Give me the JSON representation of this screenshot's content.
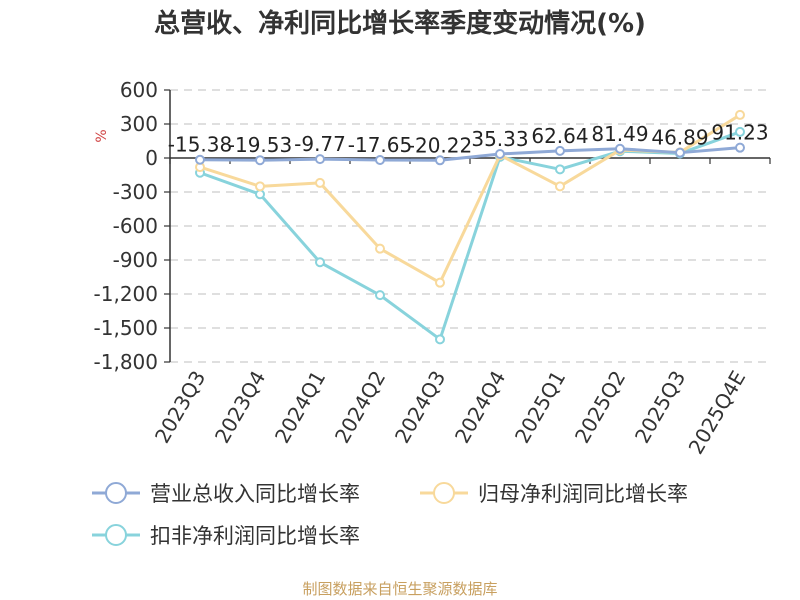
{
  "chart_data": {
    "type": "line",
    "title": "总营收、净利同比增长率季度变动情况(%)",
    "ylabel": "%",
    "ylim": [
      -1800,
      600
    ],
    "yticks": [
      600,
      300,
      0,
      -300,
      -600,
      -900,
      -1200,
      -1500,
      -1800
    ],
    "ytick_labels": [
      "600",
      "300",
      "0",
      "-300",
      "-600",
      "-900",
      "-1,200",
      "-1,500",
      "-1,800"
    ],
    "categories": [
      "2023Q3",
      "2023Q4",
      "2024Q1",
      "2024Q2",
      "2024Q3",
      "2024Q4",
      "2025Q1",
      "2025Q2",
      "2025Q3",
      "2025Q4E"
    ],
    "grid": true,
    "legend_position": "bottom",
    "series": [
      {
        "name": "营业总收入同比增长率",
        "color": "#8fa9d6",
        "values": [
          -15.38,
          -19.53,
          -9.77,
          -17.65,
          -20.22,
          35.33,
          62.64,
          81.49,
          46.89,
          91.23
        ],
        "labels": [
          "-15.38",
          "-19.53",
          "-9.77",
          "-17.65",
          "-20.22",
          "35.33",
          "62.64",
          "81.49",
          "46.89",
          "91.23"
        ]
      },
      {
        "name": "归母净利润同比增长率",
        "color": "#f8d99b",
        "values": [
          -80,
          -250,
          -220,
          -800,
          -1100,
          25,
          -250,
          70,
          50,
          380
        ]
      },
      {
        "name": "扣非净利润同比增长率",
        "color": "#88d3dc",
        "values": [
          -130,
          -320,
          -920,
          -1210,
          -1600,
          10,
          -100,
          60,
          40,
          230
        ]
      }
    ],
    "source": "制图数据来自恒生聚源数据库"
  }
}
